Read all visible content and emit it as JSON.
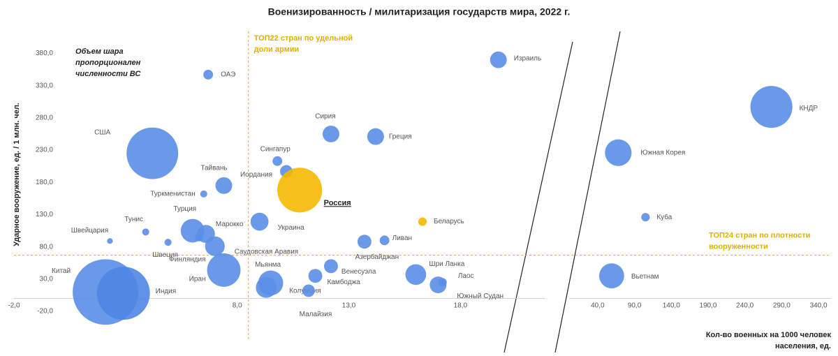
{
  "chart_data": {
    "type": "scatter",
    "title": "Военизированность  / милитаризация государств  мира, 2022 г.",
    "ylabel": "Ударное вооружение, ед. / 1 млн. чел.",
    "xlabel": [
      "Кол-во военных на 1000 человек",
      "населения, ед."
    ],
    "note": [
      "Объем шара",
      "пропорционален",
      "численности ВС"
    ],
    "ylim": [
      -20,
      400
    ],
    "yticks": [
      {
        "value": -20,
        "label": "-20,0"
      },
      {
        "value": 30,
        "label": "30,0"
      },
      {
        "value": 80,
        "label": "80,0"
      },
      {
        "value": 130,
        "label": "130,0"
      },
      {
        "value": 180,
        "label": "180,0"
      },
      {
        "value": 230,
        "label": "230,0"
      },
      {
        "value": 280,
        "label": "280,0"
      },
      {
        "value": 330,
        "label": "330,0"
      },
      {
        "value": 380,
        "label": "380,0"
      }
    ],
    "thresholds": {
      "x": {
        "value": 8.5,
        "label": [
          "ТОП22 стран по удельной",
          "доли армии"
        ]
      },
      "y": {
        "value": 67,
        "label": [
          "ТОП24 стран по плотности",
          "вооруженности"
        ]
      },
      "color": "#e0b000"
    },
    "segments": [
      {
        "xlim": [
          -2,
          22.4
        ],
        "xticks": [
          {
            "value": -2,
            "label": "-2,0"
          },
          {
            "value": 8,
            "label": "8,0"
          },
          {
            "value": 13,
            "label": "13,0"
          },
          {
            "value": 18,
            "label": "18,0"
          }
        ],
        "points": [
          {
            "label": "ОАЭ",
            "x": 6.7,
            "y": 347,
            "size": 44,
            "color": "#5b8ee8"
          },
          {
            "label": "США",
            "x": 4.2,
            "y": 225,
            "size": 1240,
            "color": "#5b8ee8"
          },
          {
            "label": "Туркменистан",
            "x": 6.5,
            "y": 162,
            "size": 23,
            "color": "#5b8ee8"
          },
          {
            "label": "Тайвань",
            "x": 7.4,
            "y": 175,
            "size": 130,
            "color": "#5b8ee8"
          },
          {
            "label": "Тунис",
            "x": 3.9,
            "y": 103,
            "size": 23,
            "color": "#5b8ee8"
          },
          {
            "label": "Швейцария",
            "x": 2.3,
            "y": 89,
            "size": 15,
            "color": "#5b8ee8"
          },
          {
            "label": "Швеция",
            "x": 4.9,
            "y": 87,
            "size": 23,
            "color": "#5b8ee8"
          },
          {
            "label": "Турция",
            "x": 6.0,
            "y": 105,
            "size": 260,
            "color": "#5b8ee8"
          },
          {
            "label": "Марокко",
            "x": 6.6,
            "y": 100,
            "size": 150,
            "color": "#5b8ee8"
          },
          {
            "label": "Финляндия",
            "x": 6.3,
            "y": 95,
            "size": 33,
            "color": "#5b8ee8"
          },
          {
            "label": "Саудовская Аравия",
            "x": 7.0,
            "y": 81,
            "size": 180,
            "color": "#5b8ee8"
          },
          {
            "label": "Иран",
            "x": 7.4,
            "y": 44,
            "size": 520,
            "color": "#5b8ee8"
          },
          {
            "label": "Китай",
            "x": 2.1,
            "y": 10,
            "size": 2000,
            "color": "#5b8ee8"
          },
          {
            "label": "Индия",
            "x": 2.9,
            "y": 8,
            "size": 1310,
            "color": "#4f86e6"
          },
          {
            "label": "Сингапур",
            "x": 9.8,
            "y": 213,
            "size": 44,
            "color": "#5b8ee8"
          },
          {
            "label": "Иордания",
            "x": 10.2,
            "y": 197,
            "size": 73,
            "color": "#5b8ee8"
          },
          {
            "label": "Россия",
            "x": 10.8,
            "y": 168,
            "size": 930,
            "color": "#f5b800",
            "highlight": true
          },
          {
            "label": "Украина",
            "x": 9.0,
            "y": 119,
            "size": 150,
            "color": "#5b8ee8"
          },
          {
            "label": "Сирия",
            "x": 12.2,
            "y": 255,
            "size": 130,
            "color": "#5b8ee8"
          },
          {
            "label": "Греция",
            "x": 14.2,
            "y": 251,
            "size": 130,
            "color": "#5b8ee8"
          },
          {
            "label": "Израиль",
            "x": 19.7,
            "y": 370,
            "size": 130,
            "color": "#5b8ee8"
          },
          {
            "label": "Беларусь",
            "x": 16.3,
            "y": 119,
            "size": 33,
            "color": "#f5b800"
          },
          {
            "label": "Ливан",
            "x": 14.6,
            "y": 90,
            "size": 44,
            "color": "#5b8ee8"
          },
          {
            "label": "Азербайджан",
            "x": 13.7,
            "y": 88,
            "size": 90,
            "color": "#5b8ee8"
          },
          {
            "label": "Венесуэла",
            "x": 12.2,
            "y": 50,
            "size": 90,
            "color": "#5b8ee8"
          },
          {
            "label": "Камбоджа",
            "x": 11.5,
            "y": 35,
            "size": 90,
            "color": "#5b8ee8"
          },
          {
            "label": "Мьянма",
            "x": 9.5,
            "y": 24,
            "size": 290,
            "color": "#5b8ee8"
          },
          {
            "label": "Колумбия",
            "x": 9.3,
            "y": 17,
            "size": 200,
            "color": "#5b8ee8"
          },
          {
            "label": "Малайзия",
            "x": 11.2,
            "y": 12,
            "size": 73,
            "color": "#5b8ee8"
          },
          {
            "label": "Шри Ланка",
            "x": 16.0,
            "y": 37,
            "size": 200,
            "color": "#5b8ee8"
          },
          {
            "label": "Лаос",
            "x": 17.2,
            "y": 25,
            "size": 33,
            "color": "#5b8ee8"
          },
          {
            "label": "Южный Судан",
            "x": 17.0,
            "y": 21,
            "size": 130,
            "color": "#5b8ee8"
          }
        ]
      },
      {
        "xlim": [
          6,
          357
        ],
        "xticks": [
          {
            "value": 40,
            "label": "40,0"
          },
          {
            "value": 90,
            "label": "90,0"
          },
          {
            "value": 140,
            "label": "140,0"
          },
          {
            "value": 190,
            "label": "190,0"
          },
          {
            "value": 240,
            "label": "240,0"
          },
          {
            "value": 290,
            "label": "290,0"
          },
          {
            "value": 340,
            "label": "340,0"
          }
        ],
        "points": [
          {
            "label": "КНДР",
            "x": 276,
            "y": 297,
            "size": 820,
            "color": "#5b8ee8"
          },
          {
            "label": "Южная Корея",
            "x": 68,
            "y": 226,
            "size": 330,
            "color": "#5b8ee8"
          },
          {
            "label": "Куба",
            "x": 105,
            "y": 126,
            "size": 33,
            "color": "#5b8ee8"
          },
          {
            "label": "Вьетнам",
            "x": 59,
            "y": 35,
            "size": 290,
            "color": "#5b8ee8"
          }
        ]
      }
    ]
  }
}
